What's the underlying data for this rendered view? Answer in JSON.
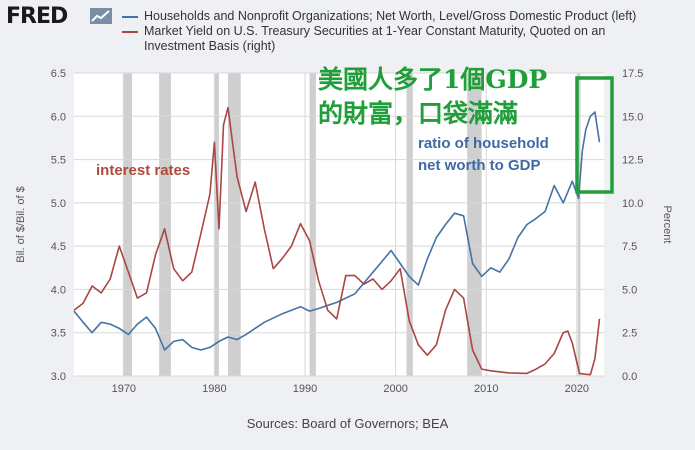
{
  "brand": {
    "name": "FRED",
    "icon": "chart-line-icon"
  },
  "legend": [
    {
      "label": "Households and Nonprofit Organizations; Net Worth, Level/Gross Domestic Product (left)",
      "color": "#4572a7"
    },
    {
      "label": "Market Yield on U.S. Treasury Securities at 1-Year Constant Maturity, Quoted on an Investment Basis (right)",
      "color": "#aa4643"
    }
  ],
  "annotations": {
    "interest_rates": "interest rates",
    "ratio_line1": "ratio of household",
    "ratio_line2": "net worth to GDP",
    "chinese_line1": "美國人多了1個GDP",
    "chinese_line2": "的財富，口袋滿滿"
  },
  "source": "Sources: Board of Governors; BEA",
  "colors": {
    "networth": "#4572a7",
    "yield": "#aa4643",
    "annotation_red": "#b04a3a",
    "annotation_blue": "#3d6aa3",
    "annotation_green": "#1f9e3a",
    "recession": "#cfcfcf"
  },
  "chart_data": {
    "type": "line",
    "xlim": [
      1964.5,
      2023
    ],
    "x_ticks": [
      "1970",
      "1980",
      "1990",
      "2000",
      "2010",
      "2020"
    ],
    "left_axis": {
      "label": "Bil. of $/Bil. of $",
      "ylim": [
        3.0,
        6.5
      ],
      "ticks": [
        "3.0",
        "3.5",
        "4.0",
        "4.5",
        "5.0",
        "5.5",
        "6.0",
        "6.5"
      ]
    },
    "right_axis": {
      "label": "Percent",
      "ylim": [
        0,
        17.5
      ],
      "ticks": [
        "0.0",
        "2.5",
        "5.0",
        "7.5",
        "10.0",
        "12.5",
        "15.0",
        "17.5"
      ]
    },
    "recessions": [
      [
        1969.9,
        1970.9
      ],
      [
        1973.9,
        1975.2
      ],
      [
        1980.0,
        1980.5
      ],
      [
        1981.5,
        1982.9
      ],
      [
        1990.5,
        1991.2
      ],
      [
        2001.2,
        2001.9
      ],
      [
        2007.9,
        2009.5
      ],
      [
        2020.1,
        2020.4
      ]
    ],
    "series": [
      {
        "name": "Households and Nonprofit Organizations; Net Worth, Level/Gross Domestic Product (left)",
        "axis": "left",
        "points": [
          [
            1964.5,
            3.75
          ],
          [
            1965.5,
            3.62
          ],
          [
            1966.5,
            3.5
          ],
          [
            1967.5,
            3.62
          ],
          [
            1968.5,
            3.6
          ],
          [
            1969.5,
            3.55
          ],
          [
            1970.5,
            3.48
          ],
          [
            1971.5,
            3.6
          ],
          [
            1972.5,
            3.68
          ],
          [
            1973.5,
            3.55
          ],
          [
            1974.5,
            3.3
          ],
          [
            1975.5,
            3.4
          ],
          [
            1976.5,
            3.42
          ],
          [
            1977.5,
            3.33
          ],
          [
            1978.5,
            3.3
          ],
          [
            1979.5,
            3.33
          ],
          [
            1980.5,
            3.4
          ],
          [
            1981.5,
            3.45
          ],
          [
            1982.5,
            3.42
          ],
          [
            1983.5,
            3.48
          ],
          [
            1985.5,
            3.62
          ],
          [
            1987.5,
            3.72
          ],
          [
            1989.5,
            3.8
          ],
          [
            1990.5,
            3.75
          ],
          [
            1991.5,
            3.78
          ],
          [
            1993.5,
            3.85
          ],
          [
            1995.5,
            3.95
          ],
          [
            1997.5,
            4.2
          ],
          [
            1999.5,
            4.45
          ],
          [
            2000.5,
            4.3
          ],
          [
            2001.5,
            4.15
          ],
          [
            2002.5,
            4.05
          ],
          [
            2003.5,
            4.35
          ],
          [
            2004.5,
            4.6
          ],
          [
            2005.5,
            4.75
          ],
          [
            2006.5,
            4.88
          ],
          [
            2007.5,
            4.85
          ],
          [
            2008.5,
            4.3
          ],
          [
            2009.5,
            4.15
          ],
          [
            2010.5,
            4.25
          ],
          [
            2011.5,
            4.2
          ],
          [
            2012.5,
            4.35
          ],
          [
            2013.5,
            4.6
          ],
          [
            2014.5,
            4.75
          ],
          [
            2015.5,
            4.82
          ],
          [
            2016.5,
            4.9
          ],
          [
            2017.5,
            5.2
          ],
          [
            2018.5,
            5.0
          ],
          [
            2019.5,
            5.25
          ],
          [
            2020.2,
            5.05
          ],
          [
            2020.6,
            5.6
          ],
          [
            2021.0,
            5.85
          ],
          [
            2021.5,
            6.0
          ],
          [
            2022.0,
            6.05
          ],
          [
            2022.5,
            5.7
          ]
        ]
      },
      {
        "name": "Market Yield on U.S. Treasury Securities at 1-Year Constant Maturity, Quoted on an Investment Basis (right)",
        "axis": "right",
        "points": [
          [
            1964.5,
            3.8
          ],
          [
            1965.5,
            4.2
          ],
          [
            1966.5,
            5.2
          ],
          [
            1967.5,
            4.8
          ],
          [
            1968.5,
            5.6
          ],
          [
            1969.5,
            7.5
          ],
          [
            1970.5,
            6.0
          ],
          [
            1971.5,
            4.5
          ],
          [
            1972.5,
            4.8
          ],
          [
            1973.5,
            7.0
          ],
          [
            1974.5,
            8.5
          ],
          [
            1975.5,
            6.2
          ],
          [
            1976.5,
            5.5
          ],
          [
            1977.5,
            6.0
          ],
          [
            1978.5,
            8.2
          ],
          [
            1979.5,
            10.5
          ],
          [
            1980.0,
            13.5
          ],
          [
            1980.5,
            8.5
          ],
          [
            1981.0,
            14.5
          ],
          [
            1981.5,
            15.5
          ],
          [
            1982.0,
            13.5
          ],
          [
            1982.5,
            11.5
          ],
          [
            1983.5,
            9.5
          ],
          [
            1984.5,
            11.2
          ],
          [
            1985.5,
            8.5
          ],
          [
            1986.5,
            6.2
          ],
          [
            1987.5,
            6.8
          ],
          [
            1988.5,
            7.5
          ],
          [
            1989.5,
            8.8
          ],
          [
            1990.5,
            7.8
          ],
          [
            1991.5,
            5.5
          ],
          [
            1992.5,
            3.8
          ],
          [
            1993.5,
            3.3
          ],
          [
            1994.5,
            5.8
          ],
          [
            1995.5,
            5.8
          ],
          [
            1996.5,
            5.3
          ],
          [
            1997.5,
            5.6
          ],
          [
            1998.5,
            5.0
          ],
          [
            1999.5,
            5.5
          ],
          [
            2000.5,
            6.2
          ],
          [
            2001.5,
            3.2
          ],
          [
            2002.5,
            1.8
          ],
          [
            2003.5,
            1.2
          ],
          [
            2004.5,
            1.8
          ],
          [
            2005.5,
            3.8
          ],
          [
            2006.5,
            5.0
          ],
          [
            2007.5,
            4.5
          ],
          [
            2008.5,
            1.5
          ],
          [
            2009.5,
            0.4
          ],
          [
            2010.5,
            0.3
          ],
          [
            2012.5,
            0.18
          ],
          [
            2014.5,
            0.15
          ],
          [
            2015.5,
            0.4
          ],
          [
            2016.5,
            0.7
          ],
          [
            2017.5,
            1.3
          ],
          [
            2018.5,
            2.5
          ],
          [
            2019.0,
            2.6
          ],
          [
            2019.5,
            1.9
          ],
          [
            2020.3,
            0.15
          ],
          [
            2021.0,
            0.1
          ],
          [
            2021.5,
            0.08
          ],
          [
            2022.0,
            1.0
          ],
          [
            2022.5,
            3.3
          ]
        ]
      }
    ]
  }
}
